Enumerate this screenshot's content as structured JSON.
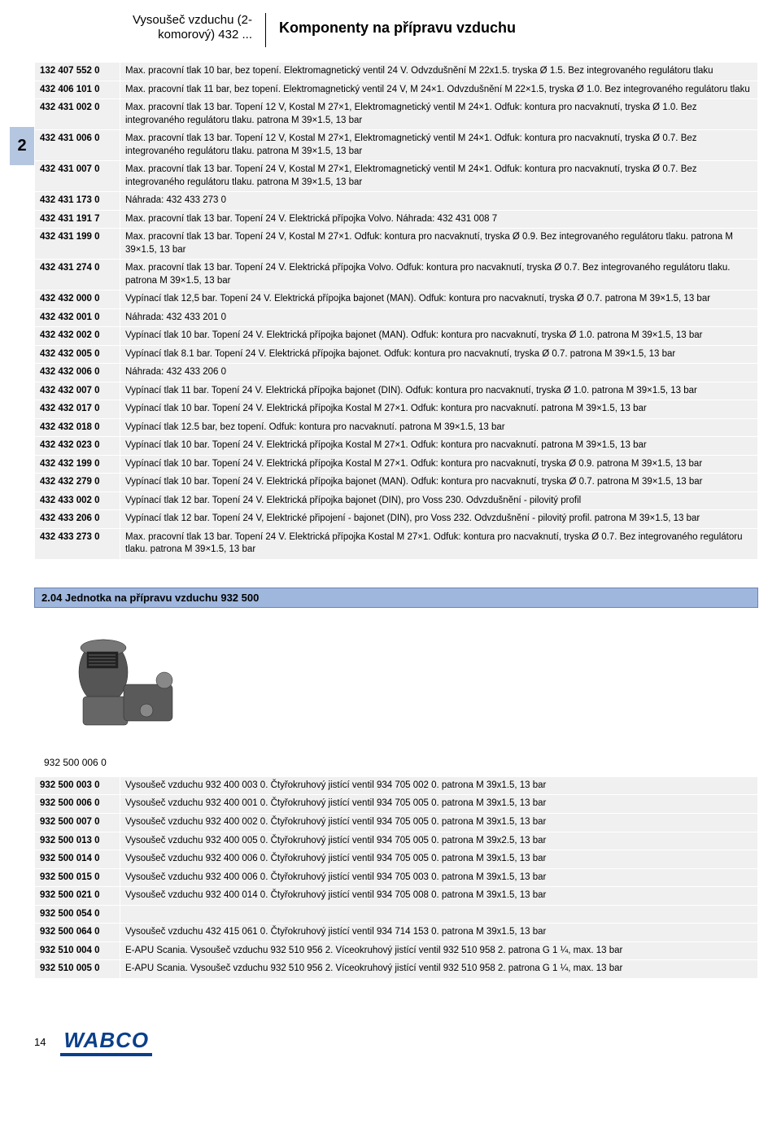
{
  "header": {
    "left_line1": "Vysoušeč vzduchu (2-",
    "left_line2": "komorový) 432 ...",
    "right": "Komponenty na přípravu vzduchu"
  },
  "side_tab": "2",
  "table1": [
    {
      "code": "132 407 552 0",
      "desc": "Max. pracovní tlak 10 bar, bez topení. Elektromagnetický ventil 24 V. Odvzdušnění M 22x1.5. tryska Ø 1.5. Bez integrovaného regulátoru tlaku"
    },
    {
      "code": "432 406 101 0",
      "desc": "Max. pracovní tlak 11 bar, bez topení. Elektromagnetický ventil 24 V, M 24×1. Odvzdušnění M 22×1.5, tryska Ø 1.0. Bez integrovaného regulátoru tlaku"
    },
    {
      "code": "432 431 002 0",
      "desc": "Max. pracovní tlak 13 bar. Topení 12 V, Kostal M 27×1, Elektromagnetický ventil M 24×1. Odfuk: kontura pro nacvaknutí, tryska Ø 1.0. Bez integrovaného regulátoru tlaku. patrona M 39×1.5, 13 bar"
    },
    {
      "code": "432 431 006 0",
      "desc": "Max. pracovní tlak 13 bar. Topení 12 V, Kostal M 27×1, Elektromagnetický ventil M 24×1. Odfuk: kontura pro nacvaknutí, tryska Ø 0.7. Bez integrovaného regulátoru tlaku. patrona M 39×1.5, 13 bar"
    },
    {
      "code": "432 431 007 0",
      "desc": "Max. pracovní tlak 13 bar. Topení 24 V, Kostal M 27×1, Elektromagnetický ventil M 24×1. Odfuk: kontura pro nacvaknutí, tryska Ø 0.7. Bez integrovaného regulátoru tlaku. patrona M 39×1.5, 13 bar"
    },
    {
      "code": "432 431 173 0",
      "desc": "Náhrada: 432 433 273 0"
    },
    {
      "code": "432 431 191 7",
      "desc": "Max. pracovní tlak 13 bar. Topení 24 V. Elektrická přípojka Volvo. Náhrada: 432 431 008 7"
    },
    {
      "code": "432 431 199 0",
      "desc": "Max. pracovní tlak 13 bar. Topení 24 V, Kostal M 27×1. Odfuk: kontura pro nacvaknutí, tryska Ø 0.9. Bez integrovaného regulátoru tlaku. patrona M 39×1.5, 13 bar"
    },
    {
      "code": "432 431 274 0",
      "desc": "Max. pracovní tlak 13 bar. Topení 24 V. Elektrická přípojka Volvo. Odfuk: kontura pro nacvaknutí, tryska Ø 0.7. Bez integrovaného regulátoru tlaku. patrona M 39×1.5, 13 bar"
    },
    {
      "code": "432 432 000 0",
      "desc": "Vypínací tlak 12,5 bar. Topení 24 V. Elektrická přípojka bajonet (MAN). Odfuk: kontura pro nacvaknutí, tryska Ø 0.7. patrona M 39×1.5, 13 bar"
    },
    {
      "code": "432 432 001 0",
      "desc": "Náhrada: 432 433 201 0"
    },
    {
      "code": "432 432 002 0",
      "desc": "Vypínací tlak 10 bar. Topení 24 V. Elektrická přípojka bajonet (MAN). Odfuk: kontura pro nacvaknutí, tryska Ø 1.0. patrona M 39×1.5, 13 bar"
    },
    {
      "code": "432 432 005 0",
      "desc": "Vypínací tlak 8.1 bar. Topení 24 V. Elektrická přípojka bajonet. Odfuk: kontura pro nacvaknutí, tryska Ø 0.7. patrona M 39×1.5, 13 bar"
    },
    {
      "code": "432 432 006 0",
      "desc": "Náhrada: 432 433 206 0"
    },
    {
      "code": "432 432 007 0",
      "desc": "Vypínací tlak 11 bar. Topení 24 V. Elektrická přípojka bajonet (DIN). Odfuk: kontura pro nacvaknutí, tryska Ø 1.0. patrona M 39×1.5, 13 bar"
    },
    {
      "code": "432 432 017 0",
      "desc": "Vypínací tlak 10 bar. Topení 24 V. Elektrická přípojka Kostal M 27×1. Odfuk: kontura pro nacvaknutí. patrona M 39×1.5, 13 bar"
    },
    {
      "code": "432 432 018 0",
      "desc": "Vypínací tlak 12.5 bar, bez topení. Odfuk: kontura pro nacvaknutí. patrona M 39×1.5, 13 bar"
    },
    {
      "code": "432 432 023 0",
      "desc": "Vypínací tlak 10 bar. Topení 24 V. Elektrická přípojka Kostal M 27×1. Odfuk: kontura pro nacvaknutí. patrona M 39×1.5, 13 bar"
    },
    {
      "code": "432 432 199 0",
      "desc": "Vypínací tlak 10 bar. Topení 24 V. Elektrická přípojka Kostal M 27×1. Odfuk: kontura pro nacvaknutí, tryska Ø 0.9. patrona M 39×1.5, 13 bar"
    },
    {
      "code": "432 432 279 0",
      "desc": "Vypínací tlak 10 bar. Topení 24 V. Elektrická přípojka bajonet (MAN). Odfuk: kontura pro nacvaknutí, tryska Ø 0.7. patrona M 39×1.5, 13 bar"
    },
    {
      "code": "432 433 002 0",
      "desc": "Vypínací tlak 12 bar. Topení 24 V. Elektrická přípojka bajonet (DIN), pro  Voss 230. Odvzdušnění - pilovitý profil"
    },
    {
      "code": "432 433 206 0",
      "desc": "Vypínací tlak 12 bar. Topení 24 V, Elektrické připojení - bajonet (DIN), pro  Voss 232. Odvzdušnění - pilovitý profil. patrona M 39×1.5, 13 bar"
    },
    {
      "code": "432 433 273 0",
      "desc": "Max. pracovní tlak 13 bar. Topení 24 V. Elektrická přípojka Kostal M 27×1. Odfuk: kontura pro nacvaknutí, tryska Ø 0.7. Bez integrovaného regulátoru tlaku. patrona M 39×1.5, 13 bar"
    }
  ],
  "section_head": "2.04 Jednotka na přípravu vzduchu 932 500",
  "product_caption": "932 500 006 0",
  "table2": [
    {
      "code": "932 500 003 0",
      "desc": "Vysoušeč vzduchu 932 400 003 0. Čtyřokruhový jistící ventil 934 705 002 0. patrona M 39x1.5, 13 bar"
    },
    {
      "code": "932 500 006 0",
      "desc": "Vysoušeč vzduchu 932 400 001 0. Čtyřokruhový jistící ventil 934 705 005 0. patrona M 39x1.5, 13 bar"
    },
    {
      "code": "932 500 007 0",
      "desc": "Vysoušeč vzduchu 932 400 002 0. Čtyřokruhový jistící ventil 934 705 005 0. patrona M 39x1.5, 13 bar"
    },
    {
      "code": "932 500 013 0",
      "desc": "Vysoušeč vzduchu 932 400 005 0. Čtyřokruhový jistící ventil 934 705 005 0. patrona M 39x2.5, 13 bar"
    },
    {
      "code": "932 500 014 0",
      "desc": "Vysoušeč vzduchu 932 400 006 0. Čtyřokruhový jistící ventil 934 705 005 0. patrona M 39x1.5, 13 bar"
    },
    {
      "code": "932 500 015 0",
      "desc": "Vysoušeč vzduchu 932 400 006 0. Čtyřokruhový jistící ventil 934 705 003 0. patrona M 39x1.5, 13 bar"
    },
    {
      "code": "932 500 021 0",
      "desc": "Vysoušeč vzduchu 932 400 014 0. Čtyřokruhový jistící ventil 934 705 008 0. patrona M 39x1.5, 13 bar"
    },
    {
      "code": "932 500 054 0",
      "desc": ""
    },
    {
      "code": "932 500 064 0",
      "desc": "Vysoušeč vzduchu 432 415 061 0. Čtyřokruhový jistící ventil 934 714 153 0. patrona M 39x1.5, 13 bar"
    },
    {
      "code": "932 510 004 0",
      "desc": "E-APU Scania. Vysoušeč vzduchu 932 510 956 2. Víceokruhový jistící ventil 932 510 958 2. patrona G 1 ¼, max. 13 bar"
    },
    {
      "code": "932 510 005 0",
      "desc": "E-APU Scania. Vysoušeč vzduchu 932 510 956 2. Víceokruhový jistící ventil 932 510 958 2. patrona G 1 ¼, max. 13 bar"
    }
  ],
  "footer": {
    "page": "14",
    "logo": "WABCO"
  },
  "colors": {
    "row_bg": "#f0f0f0",
    "section_bg": "#9fb7dd",
    "side_tab_bg": "#b5c7e0",
    "logo_color": "#0a3f8a"
  }
}
